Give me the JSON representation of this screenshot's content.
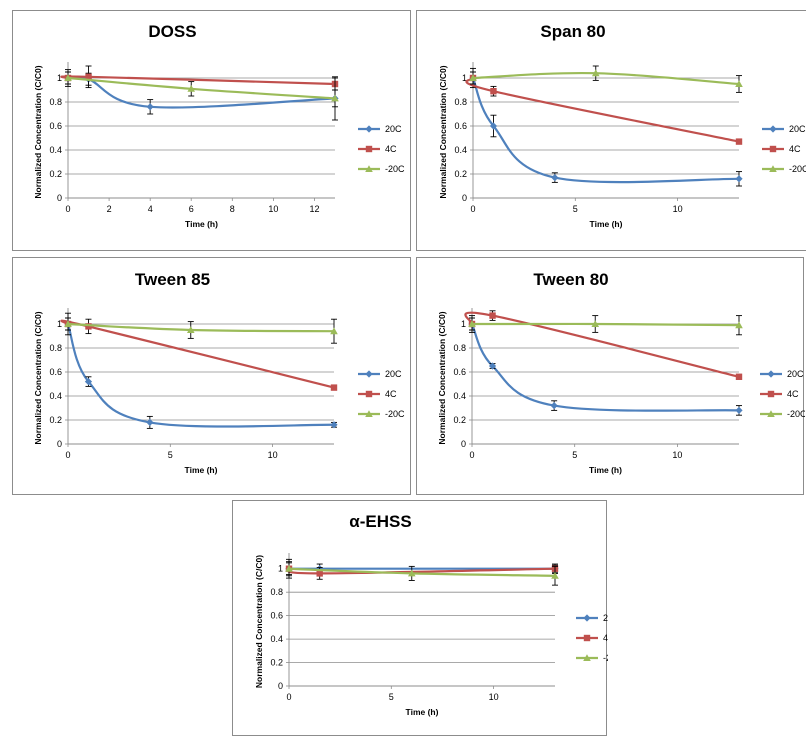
{
  "colors": {
    "20C": "#4f81bd",
    "4C": "#c0504d",
    "-20C": "#9bbb59"
  },
  "chart_data": [
    {
      "type": "line",
      "title": "DOSS",
      "xlabel": "Time (h)",
      "ylabel": "Normalized Concentration (C/C0)",
      "xlim": [
        0,
        13
      ],
      "ylim": [
        0,
        1.1
      ],
      "xticks": [
        0,
        2,
        4,
        6,
        8,
        10,
        12
      ],
      "xtick_labels": [
        "0",
        "2",
        "4",
        "6",
        "8",
        "10",
        "12"
      ],
      "yticks": [
        0,
        0.2,
        0.4,
        0.6,
        0.8,
        1
      ],
      "ytick_labels": [
        "0",
        "0.2",
        "0.4",
        "0.6",
        "0.8",
        "1"
      ],
      "legend": "right",
      "series": [
        {
          "name": "20C",
          "x": [
            0,
            1,
            4,
            13
          ],
          "y": [
            1.0,
            0.99,
            0.76,
            0.83
          ],
          "err": [
            0.07,
            0.05,
            0.06,
            0.07
          ]
        },
        {
          "name": "4C",
          "x": [
            0,
            1,
            13
          ],
          "y": [
            1.0,
            1.01,
            0.95
          ],
          "err": [
            0.05,
            0.09,
            0.05
          ]
        },
        {
          "name": "-20C",
          "x": [
            0,
            6,
            13
          ],
          "y": [
            1.0,
            0.91,
            0.83
          ],
          "err": [
            0.05,
            0.06,
            0.18
          ]
        }
      ]
    },
    {
      "type": "line",
      "title": "Span 80",
      "xlabel": "Time (h)",
      "ylabel": "Normalized Concentration (C/C0)",
      "xlim": [
        0,
        13
      ],
      "ylim": [
        0,
        1.1
      ],
      "xticks": [
        0,
        5,
        10
      ],
      "xtick_labels": [
        "0",
        "5",
        "10"
      ],
      "yticks": [
        0,
        0.2,
        0.4,
        0.6,
        0.8,
        1
      ],
      "ytick_labels": [
        "0",
        "0.2",
        "0.4",
        "0.6",
        "0.8",
        "1"
      ],
      "legend": "right",
      "series": [
        {
          "name": "20C",
          "x": [
            0,
            1,
            4,
            13
          ],
          "y": [
            1.0,
            0.6,
            0.17,
            0.16
          ],
          "err": [
            0.08,
            0.09,
            0.04,
            0.06
          ]
        },
        {
          "name": "4C",
          "x": [
            0,
            1,
            13
          ],
          "y": [
            1.0,
            0.89,
            0.47
          ],
          "err": [
            0.05,
            0.04,
            0.02
          ]
        },
        {
          "name": "-20C",
          "x": [
            0,
            6,
            13
          ],
          "y": [
            1.0,
            1.04,
            0.95
          ],
          "err": [
            0.05,
            0.06,
            0.07
          ]
        }
      ]
    },
    {
      "type": "line",
      "title": "Tween 85",
      "xlabel": "Time (h)",
      "ylabel": "Normalized Concentration (C/C0)",
      "xlim": [
        0,
        13
      ],
      "ylim": [
        0,
        1.1
      ],
      "xticks": [
        0,
        5,
        10
      ],
      "xtick_labels": [
        "0",
        "5",
        "10"
      ],
      "yticks": [
        0,
        0.2,
        0.4,
        0.6,
        0.8,
        1
      ],
      "ytick_labels": [
        "0",
        "0.2",
        "0.4",
        "0.6",
        "0.8",
        "1"
      ],
      "legend": "right",
      "series": [
        {
          "name": "20C",
          "x": [
            0,
            1,
            4,
            13
          ],
          "y": [
            1.0,
            0.52,
            0.18,
            0.16
          ],
          "err": [
            0.09,
            0.04,
            0.05,
            0.02
          ]
        },
        {
          "name": "4C",
          "x": [
            0,
            1,
            13
          ],
          "y": [
            1.0,
            0.98,
            0.47
          ],
          "err": [
            0.05,
            0.06,
            0.02
          ]
        },
        {
          "name": "-20C",
          "x": [
            0,
            6,
            13
          ],
          "y": [
            1.0,
            0.95,
            0.94
          ],
          "err": [
            0.05,
            0.07,
            0.1
          ]
        }
      ]
    },
    {
      "type": "line",
      "title": "Tween 80",
      "xlabel": "Time (h)",
      "ylabel": "Normalized Concentration (C/C0)",
      "xlim": [
        0,
        13
      ],
      "ylim": [
        0,
        1.1
      ],
      "xticks": [
        0,
        5,
        10
      ],
      "xtick_labels": [
        "0",
        "5",
        "10"
      ],
      "yticks": [
        0,
        0.2,
        0.4,
        0.6,
        0.8,
        1
      ],
      "ytick_labels": [
        "0",
        "0.2",
        "0.4",
        "0.6",
        "0.8",
        "1"
      ],
      "legend": "right",
      "series": [
        {
          "name": "20C",
          "x": [
            0,
            1,
            4,
            13
          ],
          "y": [
            1.0,
            0.65,
            0.32,
            0.28
          ],
          "err": [
            0.07,
            0.02,
            0.04,
            0.04
          ]
        },
        {
          "name": "4C",
          "x": [
            0,
            1,
            13
          ],
          "y": [
            1.0,
            1.07,
            0.56
          ],
          "err": [
            0.05,
            0.04,
            0.02
          ]
        },
        {
          "name": "-20C",
          "x": [
            0,
            6,
            13
          ],
          "y": [
            1.0,
            1.0,
            0.99
          ],
          "err": [
            0.05,
            0.07,
            0.08
          ]
        }
      ]
    },
    {
      "type": "line",
      "title": "α-EHSS",
      "xlabel": "Time (h)",
      "ylabel": "Normalized Concentration (C/C0)",
      "xlim": [
        0,
        13
      ],
      "ylim": [
        0,
        1.1
      ],
      "xticks": [
        0,
        5,
        10
      ],
      "xtick_labels": [
        "0",
        "5",
        "10"
      ],
      "yticks": [
        0,
        0.2,
        0.4,
        0.6,
        0.8,
        1
      ],
      "ytick_labels": [
        "0",
        "0.2",
        "0.4",
        "0.6",
        "0.8",
        "1"
      ],
      "legend": "right",
      "series": [
        {
          "name": "20C",
          "x": [
            0,
            1.5,
            13
          ],
          "y": [
            1.0,
            1.0,
            1.0
          ],
          "err": [
            0.08,
            0.04,
            0.03
          ]
        },
        {
          "name": "4C",
          "x": [
            0,
            1.5,
            13
          ],
          "y": [
            1.0,
            0.96,
            1.0
          ],
          "err": [
            0.05,
            0.05,
            0.04
          ]
        },
        {
          "name": "-20C",
          "x": [
            0,
            6,
            13
          ],
          "y": [
            1.0,
            0.96,
            0.94
          ],
          "err": [
            0.06,
            0.06,
            0.08
          ]
        }
      ]
    }
  ]
}
